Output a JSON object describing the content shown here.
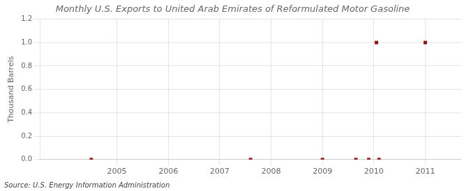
{
  "chart_data": {
    "type": "scatter",
    "title": "Monthly U.S. Exports to United Arab Emirates of Reformulated Motor Gasoline",
    "ylabel": "Thousand Barrels",
    "annotations": [
      "Source: U.S. Energy Information Administration"
    ],
    "x": [
      2004.5,
      2007.6,
      2009.0,
      2009.65,
      2009.9,
      2010.1,
      2010.05,
      2011.0
    ],
    "values": [
      0.0,
      0.0,
      0.0,
      0.0,
      0.0,
      0.0,
      1.0,
      1.0
    ],
    "color": "#8b1a1a",
    "marker": "square",
    "xlim": [
      2003.5,
      2011.7
    ],
    "xticks": [
      2005,
      2006,
      2007,
      2008,
      2009,
      2010,
      2011
    ],
    "ylim": [
      0.0,
      1.2
    ],
    "yticks": [
      {
        "value": 0.0,
        "label": "0.0"
      },
      0.2,
      0.4,
      0.6,
      0.8,
      {
        "value": 1.0,
        "label": "1.0"
      },
      1.2
    ],
    "grid": true
  }
}
